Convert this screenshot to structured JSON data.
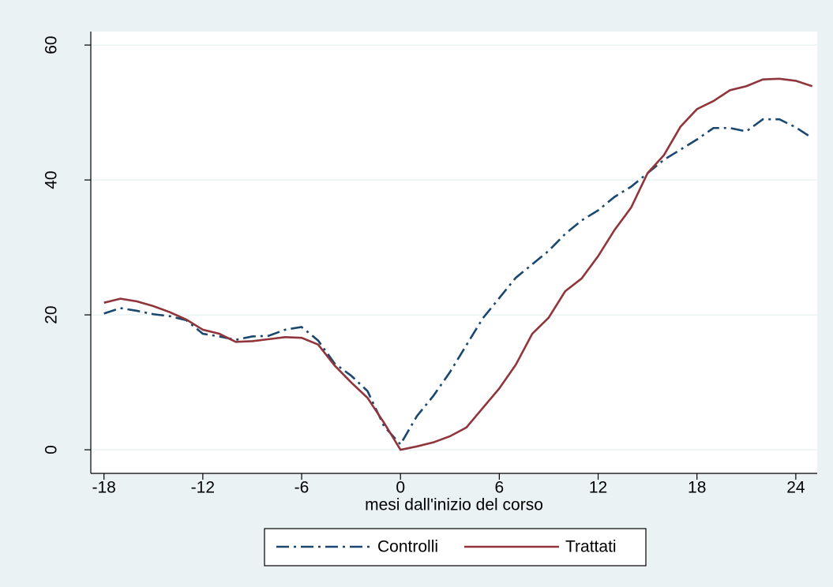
{
  "chart_data": {
    "type": "line",
    "xlabel": "mesi dall'inizio del corso",
    "x": [
      -18,
      -17,
      -16,
      -15,
      -14,
      -13,
      -12,
      -11,
      -10,
      -9,
      -8,
      -7,
      -6,
      -5,
      -4,
      -3,
      -2,
      -1,
      0,
      1,
      2,
      3,
      4,
      5,
      6,
      7,
      8,
      9,
      10,
      11,
      12,
      13,
      14,
      15,
      16,
      17,
      18,
      19,
      20,
      21,
      22,
      23,
      24,
      25
    ],
    "series": [
      {
        "name": "Controlli",
        "color": "#1a476f",
        "style": "dashdot",
        "values": [
          20.2,
          21,
          20.6,
          20.1,
          19.8,
          19.2,
          17.2,
          16.8,
          16.3,
          16.8,
          16.9,
          17.8,
          18.2,
          16.2,
          12.8,
          11,
          8.7,
          3.5,
          0.8,
          5,
          8,
          11.5,
          15.5,
          19.5,
          22.5,
          25.5,
          27.5,
          29.5,
          32,
          34,
          35.5,
          37.5,
          39,
          41,
          43,
          44.5,
          46,
          47.7,
          47.7,
          47.2,
          49,
          49,
          47.8,
          46.2
        ]
      },
      {
        "name": "Trattati",
        "color": "#90353b",
        "style": "solid",
        "values": [
          21.8,
          22.4,
          22,
          21.3,
          20.4,
          19.3,
          17.8,
          17.2,
          16,
          16.1,
          16.4,
          16.7,
          16.6,
          15.6,
          12.5,
          10,
          7.7,
          4,
          0,
          0.5,
          1.1,
          2,
          3.3,
          6.2,
          9.1,
          12.6,
          17.2,
          19.6,
          23.5,
          25.4,
          28.7,
          32.6,
          35.9,
          41,
          43.7,
          47.9,
          50.5,
          51.7,
          53.3,
          53.9,
          54.9,
          55,
          54.7,
          53.9
        ]
      }
    ],
    "xlim": [
      -18.8,
      25.3
    ],
    "xticks": [
      -18,
      -12,
      -6,
      0,
      6,
      12,
      18,
      24
    ],
    "ylim": [
      -3.5,
      62
    ],
    "yticks": [
      0,
      20,
      40,
      60
    ],
    "grid": true
  }
}
